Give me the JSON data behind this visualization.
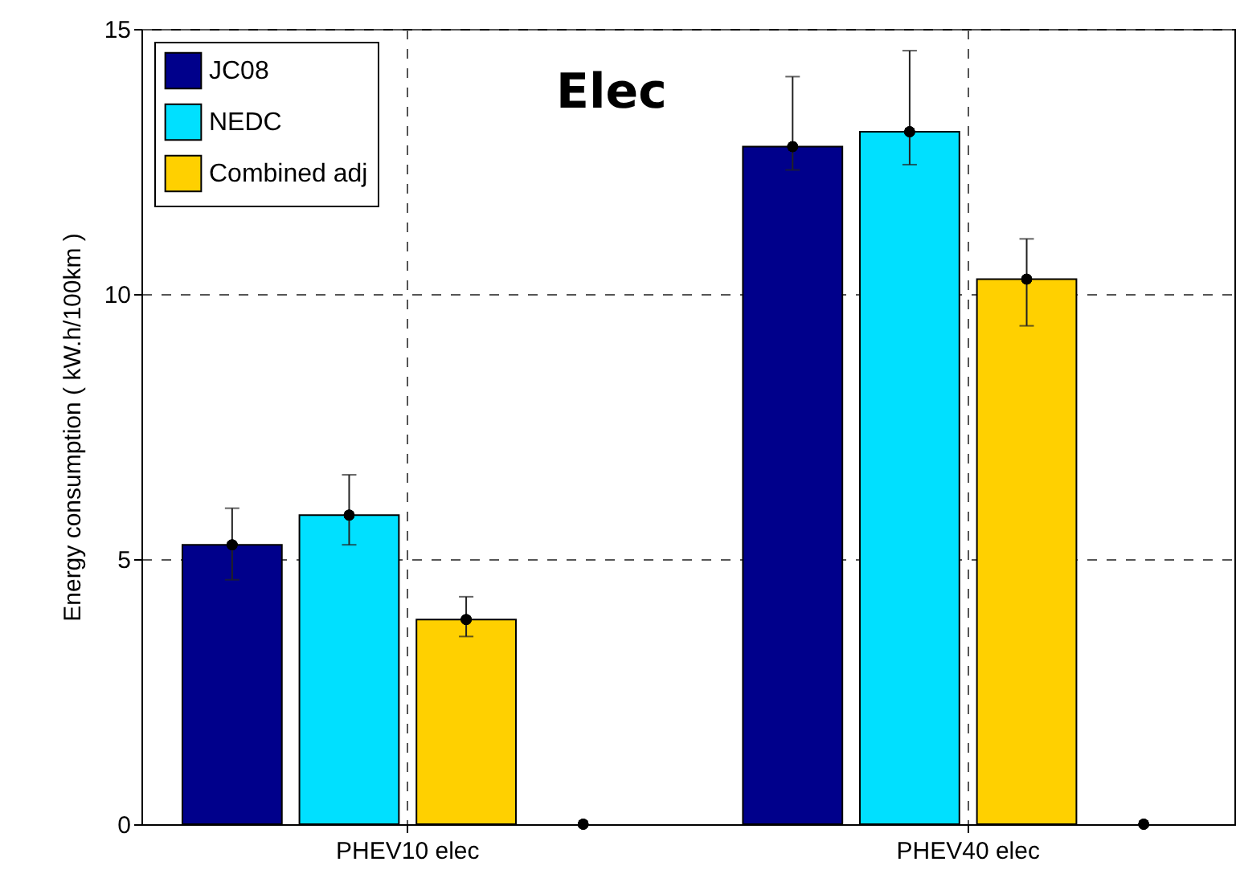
{
  "chart_data": {
    "type": "bar",
    "title": "Elec",
    "ylabel": "Energy consumption ( kW.h/100km )",
    "categories": [
      "PHEV10 elec",
      "PHEV40 elec"
    ],
    "series": [
      {
        "name": "JC08",
        "color": "#00008b",
        "values": [
          5.27,
          12.78
        ],
        "errors": [
          [
            4.61,
            5.96
          ],
          [
            12.34,
            14.1
          ]
        ]
      },
      {
        "name": "NEDC",
        "color": "#00e0ff",
        "values": [
          5.83,
          13.06
        ],
        "errors": [
          [
            5.27,
            6.59
          ],
          [
            12.44,
            14.59
          ]
        ]
      },
      {
        "name": "Combined adj",
        "color": "#ffd000",
        "values": [
          3.86,
          10.28
        ],
        "errors": [
          [
            3.54,
            4.29
          ],
          [
            9.4,
            11.04
          ]
        ]
      },
      {
        "type": "scatter",
        "color": "#000000",
        "x": [
          "PHEV10 elec",
          "PHEV40 elec"
        ],
        "values": [
          5.27,
          12.78
        ]
      },
      {
        "type": "scatter",
        "color": "#000000",
        "x": [
          "PHEV10 elec",
          "PHEV40 elec"
        ],
        "values": [
          5.83,
          13.06
        ]
      },
      {
        "type": "scatter",
        "color": "#000000",
        "x": [
          "PHEV10 elec",
          "PHEV40 elec"
        ],
        "values": [
          3.86,
          10.28
        ]
      },
      {
        "type": "scatter",
        "color": "#000000",
        "x": [
          "PHEV10 elec",
          "PHEV40 elec"
        ],
        "values": [
          0,
          0
        ]
      }
    ],
    "ylim": [
      0,
      15
    ],
    "yticks": [
      0,
      5,
      10,
      15
    ],
    "grid": true,
    "legend": "top left",
    "marker": "circle"
  }
}
